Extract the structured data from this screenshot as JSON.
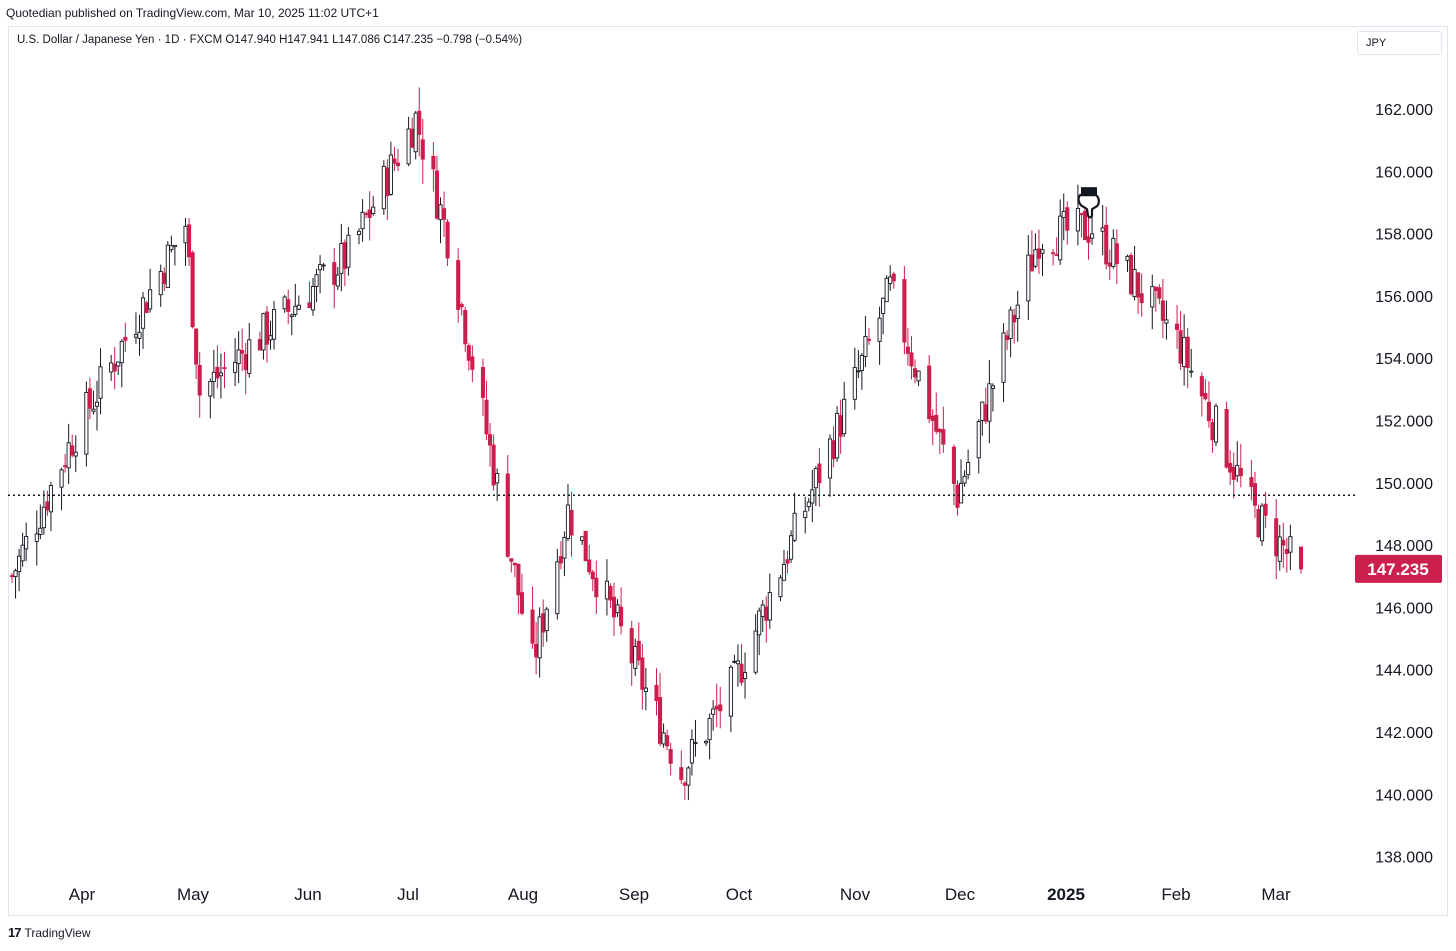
{
  "header": {
    "publisher": "Quotedian published on TradingView.com, Mar 10, 2025 11:02 UTC+1",
    "symbol_line": "U.S. Dollar / Japanese Yen · 1D · FXCM  O147.940  H147.941  L147.086  C147.235  −0.798 (−0.54%)",
    "currency_button": "JPY"
  },
  "footer": {
    "logo_mark": "17",
    "logo_text": "TradingView"
  },
  "colors": {
    "up": "#131722",
    "down": "#cc1f4e",
    "last_price_bg": "#cc1f4e",
    "dotted_line": "#131722"
  },
  "icons": {
    "annotation": "pointing-hand-icon"
  },
  "chart_data": {
    "type": "candlestick",
    "title": "U.S. Dollar / Japanese Yen · 1D · FXCM",
    "ohlc": {
      "open": 147.94,
      "high": 147.941,
      "low": 147.086,
      "close": 147.235,
      "change": -0.798,
      "change_pct": -0.54
    },
    "y_axis": {
      "side": "right",
      "range": [
        137.2,
        163.6
      ],
      "ticks": [
        "162.000",
        "160.000",
        "158.000",
        "156.000",
        "154.000",
        "152.000",
        "150.000",
        "148.000",
        "146.000",
        "144.000",
        "142.000",
        "140.000",
        "138.000"
      ]
    },
    "x_axis": {
      "ticks": [
        "Apr",
        "May",
        "Jun",
        "Jul",
        "Aug",
        "Sep",
        "Oct",
        "Nov",
        "Dec",
        "2025",
        "Feb",
        "Mar"
      ],
      "bold": [
        "2025"
      ]
    },
    "last_price": "147.235",
    "horizontal_line": {
      "value": 149.6,
      "style": "dotted"
    },
    "annotation": {
      "icon": "pointing-hand",
      "near_value": 158.4,
      "date": "2025-01"
    },
    "series": [
      {
        "name": "USD/JPY",
        "monthly_path": [
          {
            "date": "2024-03-11",
            "close": 147.0
          },
          {
            "date": "2024-03-28",
            "close": 151.4
          },
          {
            "date": "2024-04-29",
            "close": 158.3
          },
          {
            "date": "2024-05-03",
            "close": 152.9
          },
          {
            "date": "2024-06-14",
            "close": 157.3
          },
          {
            "date": "2024-07-03",
            "close": 161.7
          },
          {
            "date": "2024-07-12",
            "close": 157.9
          },
          {
            "date": "2024-08-05",
            "close": 144.2
          },
          {
            "date": "2024-08-15",
            "close": 149.1
          },
          {
            "date": "2024-09-16",
            "close": 140.7
          },
          {
            "date": "2024-10-01",
            "close": 143.6
          },
          {
            "date": "2024-10-31",
            "close": 152.0
          },
          {
            "date": "2024-11-14",
            "close": 156.2
          },
          {
            "date": "2024-12-03",
            "close": 149.6
          },
          {
            "date": "2024-12-26",
            "close": 157.9
          },
          {
            "date": "2025-01-10",
            "close": 158.2
          },
          {
            "date": "2025-02-03",
            "close": 154.6
          },
          {
            "date": "2025-02-25",
            "close": 149.0
          },
          {
            "date": "2025-03-10",
            "close": 147.2
          }
        ]
      }
    ]
  }
}
